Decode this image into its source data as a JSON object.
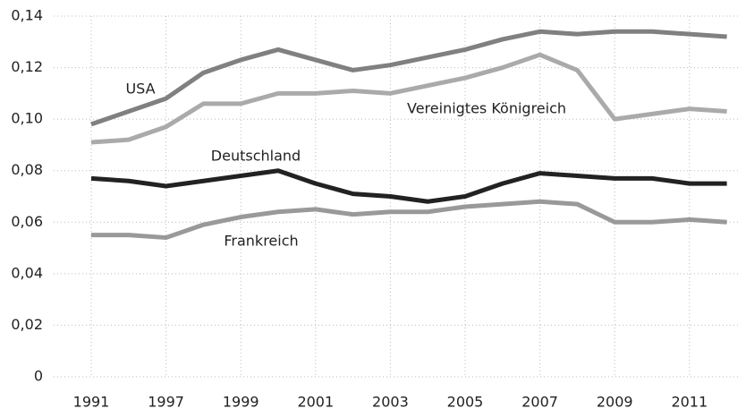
{
  "chart_data": {
    "type": "line",
    "categories": [
      "1991",
      null,
      "1997",
      null,
      "1999",
      null,
      "2001",
      null,
      "2003",
      null,
      "2005",
      null,
      "2007",
      null,
      "2009",
      null,
      "2011",
      null
    ],
    "series": [
      {
        "name": "USA",
        "color": "#808080",
        "values": [
          0.098,
          0.103,
          0.108,
          0.118,
          0.123,
          0.127,
          0.123,
          0.119,
          0.121,
          0.124,
          0.127,
          0.131,
          0.134,
          0.133,
          0.134,
          0.134,
          0.133,
          0.132
        ]
      },
      {
        "name": "Vereinigtes Königreich",
        "color": "#aaaaaa",
        "values": [
          0.091,
          0.092,
          0.097,
          0.106,
          0.106,
          0.11,
          0.11,
          0.111,
          0.11,
          0.113,
          0.116,
          0.12,
          0.125,
          0.119,
          0.1,
          0.102,
          0.104,
          0.103
        ]
      },
      {
        "name": "Deutschland",
        "color": "#222222",
        "values": [
          0.077,
          0.076,
          0.074,
          0.076,
          0.078,
          0.08,
          0.075,
          0.071,
          0.07,
          0.068,
          0.07,
          0.075,
          0.079,
          0.078,
          0.077,
          0.077,
          0.075,
          0.075
        ]
      },
      {
        "name": "Frankreich",
        "color": "#999999",
        "values": [
          0.055,
          0.055,
          0.054,
          0.059,
          0.062,
          0.064,
          0.065,
          0.063,
          0.064,
          0.064,
          0.066,
          0.067,
          0.068,
          0.067,
          0.06,
          0.06,
          0.061,
          0.06
        ]
      }
    ],
    "ylim": [
      0,
      0.14
    ],
    "yticks": [
      0,
      {
        "value": 0.02,
        "label": "0,02"
      },
      {
        "value": 0.04,
        "label": "0,04"
      },
      {
        "value": 0.06,
        "label": "0,06"
      },
      {
        "value": 0.08,
        "label": "0,08"
      },
      {
        "value": 0.1,
        "label": "0,10"
      },
      {
        "value": 0.12,
        "label": "0,12"
      },
      {
        "value": 0.14,
        "label": "0,14"
      }
    ],
    "grid": true
  }
}
